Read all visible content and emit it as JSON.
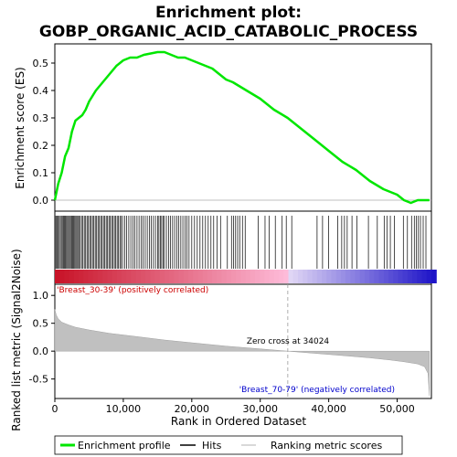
{
  "title_line1": "Enrichment plot:",
  "title_line2": "GOBP_ORGANIC_ACID_CATABOLIC_PROCESS",
  "colors": {
    "es_line": "#00e600",
    "hits": "#000000",
    "metric_fill": "#c0c0c0",
    "pos_label": "#cc0000",
    "neg_label": "#0000cc",
    "zero_line": "#aaaaaa"
  },
  "legend": {
    "enrichment": "Enrichment profile",
    "hits": "Hits",
    "ranking": "Ranking metric scores"
  },
  "annotations": {
    "positive": "'Breast_30-39' (positively correlated)",
    "negative": "'Breast_70-79' (negatively correlated)",
    "zero_cross": "Zero cross at 34024"
  },
  "chart_data": [
    {
      "type": "line",
      "title": "Enrichment plot: GOBP_ORGANIC_ACID_CATABOLIC_PROCESS",
      "ylabel": "Enrichment score (ES)",
      "xlim": [
        0,
        55000
      ],
      "ylim": [
        -0.04,
        0.57
      ],
      "yticks": [
        "0.0",
        "0.1",
        "0.2",
        "0.3",
        "0.4",
        "0.5"
      ],
      "ytick_values": [
        0,
        0.1,
        0.2,
        0.3,
        0.4,
        0.5
      ],
      "x": [
        0,
        500,
        1000,
        1500,
        2000,
        2500,
        3000,
        3500,
        4000,
        4500,
        5000,
        6000,
        7000,
        8000,
        9000,
        10000,
        11000,
        12000,
        13000,
        14000,
        15000,
        16000,
        17000,
        18000,
        19000,
        20000,
        21000,
        22000,
        23000,
        24000,
        25000,
        26000,
        28000,
        30000,
        32000,
        34000,
        36000,
        38000,
        40000,
        42000,
        44000,
        46000,
        48000,
        50000,
        51000,
        52000,
        53000,
        54000,
        54700
      ],
      "y": [
        0.0,
        0.06,
        0.1,
        0.16,
        0.19,
        0.25,
        0.29,
        0.3,
        0.31,
        0.33,
        0.36,
        0.4,
        0.43,
        0.46,
        0.49,
        0.51,
        0.52,
        0.52,
        0.53,
        0.535,
        0.54,
        0.54,
        0.53,
        0.52,
        0.52,
        0.51,
        0.5,
        0.49,
        0.48,
        0.46,
        0.44,
        0.43,
        0.4,
        0.37,
        0.33,
        0.3,
        0.26,
        0.22,
        0.18,
        0.14,
        0.11,
        0.07,
        0.04,
        0.02,
        0.0,
        -0.01,
        0.0,
        0.0,
        0.0
      ]
    },
    {
      "type": "area",
      "ylabel": "Ranked list metric (Signal2Noise)",
      "xlabel": "Rank in Ordered Dataset",
      "xlim": [
        0,
        55000
      ],
      "ylim": [
        -0.85,
        1.2
      ],
      "xticks": [
        "0",
        "10,000",
        "20,000",
        "30,000",
        "40,000",
        "50,000"
      ],
      "xtick_values": [
        0,
        10000,
        20000,
        30000,
        40000,
        50000
      ],
      "yticks": [
        "-0.5",
        "0.0",
        "0.5",
        "1.0"
      ],
      "ytick_values": [
        -0.5,
        0,
        0.5,
        1.0
      ],
      "zero_cross": 34024,
      "x": [
        0,
        200,
        500,
        1000,
        2000,
        3000,
        5000,
        8000,
        12000,
        16000,
        20000,
        25000,
        30000,
        34024,
        38000,
        42000,
        46000,
        49000,
        51000,
        53000,
        54000,
        54500,
        54700
      ],
      "values": [
        0.75,
        0.65,
        0.58,
        0.52,
        0.47,
        0.43,
        0.38,
        0.32,
        0.26,
        0.2,
        0.15,
        0.09,
        0.04,
        0.0,
        -0.04,
        -0.08,
        -0.12,
        -0.16,
        -0.19,
        -0.23,
        -0.28,
        -0.4,
        -0.8
      ]
    }
  ],
  "hits": [
    150,
    300,
    420,
    600,
    800,
    950,
    1100,
    1250,
    1400,
    1550,
    1700,
    1850,
    2000,
    2150,
    2300,
    2450,
    2600,
    2750,
    2900,
    3050,
    3200,
    3350,
    3500,
    3700,
    3900,
    4100,
    4300,
    4500,
    4700,
    4900,
    5100,
    5300,
    5500,
    5700,
    5900,
    6100,
    6300,
    6500,
    6700,
    6900,
    7100,
    7300,
    7500,
    7700,
    7900,
    8100,
    8300,
    8500,
    8700,
    8900,
    9100,
    9300,
    9500,
    9700,
    9900,
    10200,
    10500,
    10800,
    11100,
    11400,
    11700,
    12000,
    12300,
    12600,
    12900,
    13200,
    13500,
    13800,
    14100,
    14400,
    14700,
    15000,
    15200,
    15400,
    15600,
    15800,
    16000,
    16300,
    16600,
    16900,
    17200,
    17500,
    17800,
    18100,
    18400,
    18700,
    19000,
    19300,
    19600,
    20000,
    20400,
    20800,
    21200,
    21600,
    22000,
    22400,
    22800,
    23200,
    23700,
    24200,
    25200,
    25800,
    26100,
    26400,
    26700,
    27000,
    27400,
    27800,
    29700,
    30700,
    31300,
    32200,
    33200,
    33800,
    34600,
    38300,
    39100,
    40000,
    41300,
    41900,
    42300,
    42700,
    43400,
    44100,
    45800,
    47100,
    48100,
    48500,
    49000,
    49600,
    50900,
    51500,
    52100,
    52500,
    52800,
    53100,
    53400,
    53800,
    54200
  ]
}
